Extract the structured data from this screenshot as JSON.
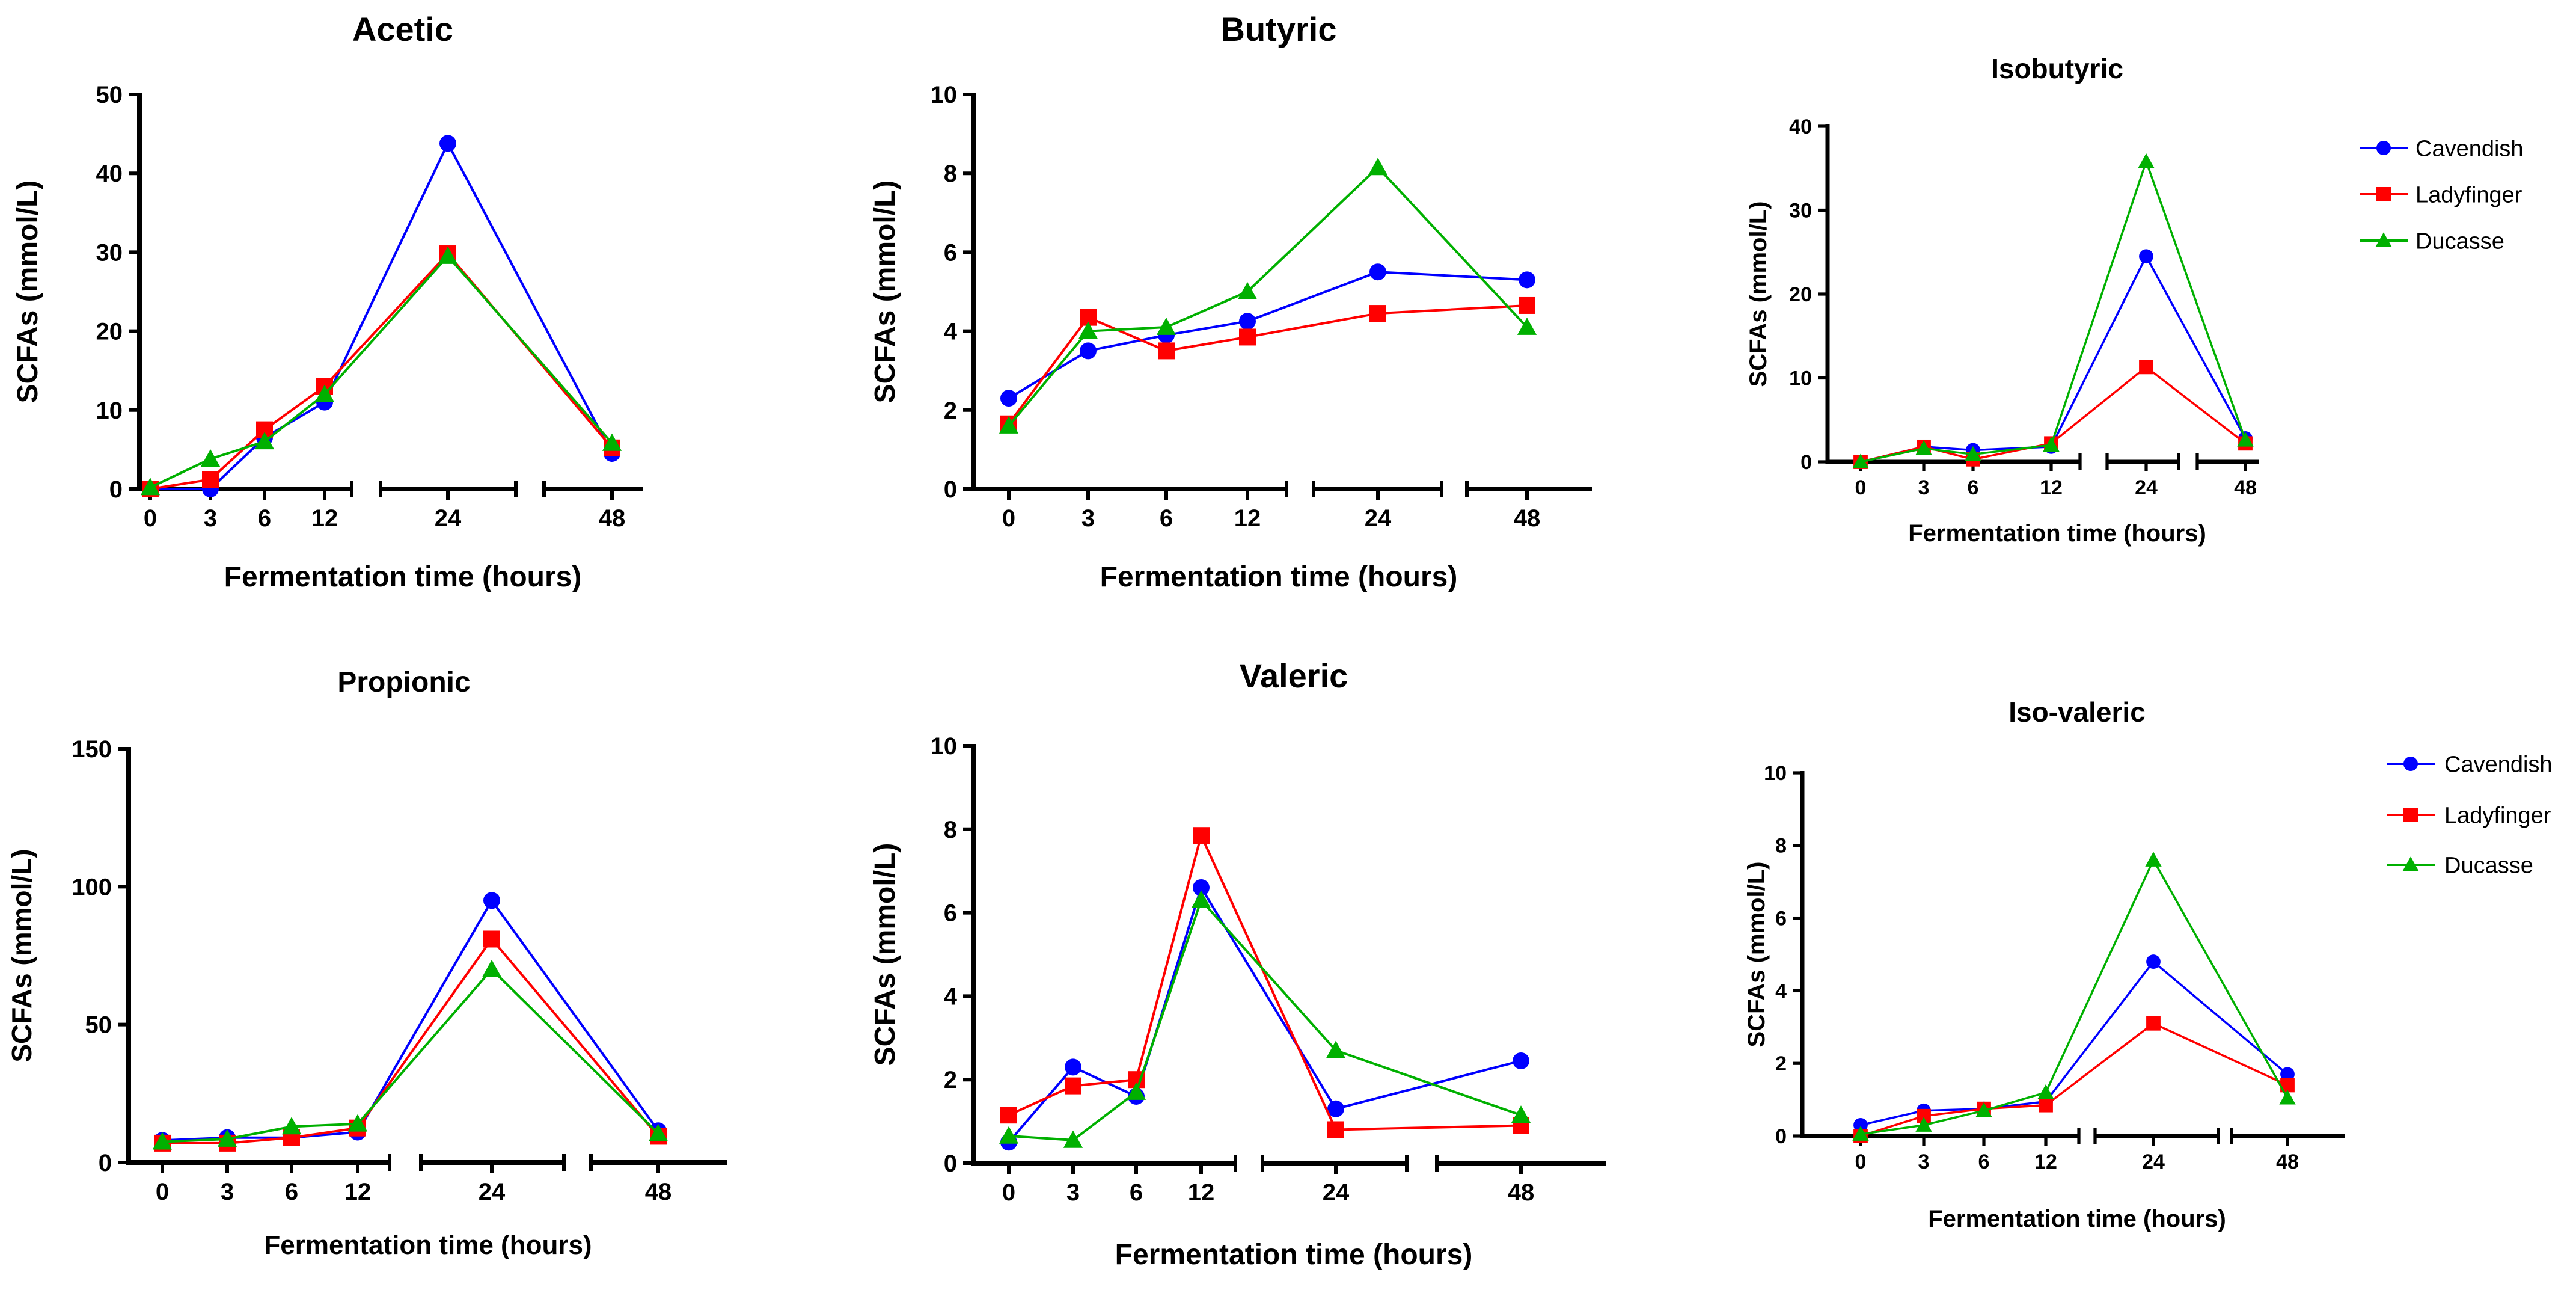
{
  "figure": {
    "series_styles": [
      {
        "name": "Cavendish",
        "color": "#0000ff",
        "marker": "circle"
      },
      {
        "name": "Ladyfinger",
        "color": "#ff0000",
        "marker": "square"
      },
      {
        "name": "Ducasse",
        "color": "#00b000",
        "marker": "triangle"
      }
    ]
  },
  "chart_data": [
    {
      "type": "line",
      "title": "Acetic",
      "xlabel": "Fermentation time (hours)",
      "ylabel": "SCFAs (mmol/L)",
      "ylim": [
        0,
        50
      ],
      "yticks": [
        0,
        10,
        20,
        30,
        40,
        50
      ],
      "categories": [
        "0",
        "3",
        "6",
        "12",
        "24",
        "48"
      ],
      "legend": false,
      "series": [
        {
          "name": "Cavendish",
          "values": [
            0,
            0,
            6.5,
            11,
            43.8,
            4.5
          ]
        },
        {
          "name": "Ladyfinger",
          "values": [
            0,
            1.2,
            7.5,
            13,
            29.8,
            5.2
          ]
        },
        {
          "name": "Ducasse",
          "values": [
            0.2,
            3.8,
            6,
            12,
            29.5,
            5.8
          ]
        }
      ]
    },
    {
      "type": "line",
      "title": "Butyric",
      "xlabel": "Fermentation time (hours)",
      "ylabel": "SCFAs (mmol/L)",
      "ylim": [
        0,
        10
      ],
      "yticks": [
        0,
        2,
        4,
        6,
        8,
        10
      ],
      "categories": [
        "0",
        "3",
        "6",
        "12",
        "24",
        "48"
      ],
      "legend": false,
      "series": [
        {
          "name": "Cavendish",
          "values": [
            2.3,
            3.5,
            3.9,
            4.25,
            5.5,
            5.3
          ]
        },
        {
          "name": "Ladyfinger",
          "values": [
            1.65,
            4.35,
            3.5,
            3.85,
            4.45,
            4.65
          ]
        },
        {
          "name": "Ducasse",
          "values": [
            1.6,
            4.0,
            4.1,
            5.0,
            8.15,
            4.1
          ]
        }
      ]
    },
    {
      "type": "line",
      "title": "Isobutyric",
      "xlabel": "Fermentation time (hours)",
      "ylabel": "SCFAs (mmol/L)",
      "ylim": [
        0,
        40
      ],
      "yticks": [
        0,
        10,
        20,
        30,
        40
      ],
      "categories": [
        "0",
        "3",
        "6",
        "12",
        "24",
        "48"
      ],
      "legend": true,
      "series": [
        {
          "name": "Cavendish",
          "values": [
            0,
            1.8,
            1.4,
            1.8,
            24.5,
            2.8
          ]
        },
        {
          "name": "Ladyfinger",
          "values": [
            0,
            1.8,
            0.3,
            2.2,
            11.3,
            2.2
          ]
        },
        {
          "name": "Ducasse",
          "values": [
            0,
            1.6,
            0.9,
            2.0,
            35.8,
            2.6
          ]
        }
      ]
    },
    {
      "type": "line",
      "title": "Propionic",
      "xlabel": "Fermentation time (hours)",
      "ylabel": "SCFAs (mmol/L)",
      "ylim": [
        0,
        150
      ],
      "yticks": [
        0,
        50,
        100,
        150
      ],
      "categories": [
        "0",
        "3",
        "6",
        "12",
        "24",
        "48"
      ],
      "legend": false,
      "series": [
        {
          "name": "Cavendish",
          "values": [
            8,
            9,
            9,
            11,
            95,
            11.5
          ]
        },
        {
          "name": "Ladyfinger",
          "values": [
            7,
            7,
            9,
            12.5,
            81,
            9.5
          ]
        },
        {
          "name": "Ducasse",
          "values": [
            7.5,
            8.5,
            13,
            14,
            70,
            10.5
          ]
        }
      ]
    },
    {
      "type": "line",
      "title": "Valeric",
      "xlabel": "Fermentation time (hours)",
      "ylabel": "SCFAs (mmol/L)",
      "ylim": [
        0,
        10
      ],
      "yticks": [
        0,
        2,
        4,
        6,
        8,
        10
      ],
      "categories": [
        "0",
        "3",
        "6",
        "12",
        "24",
        "48"
      ],
      "legend": false,
      "series": [
        {
          "name": "Cavendish",
          "values": [
            0.5,
            2.3,
            1.6,
            6.6,
            1.3,
            2.45
          ]
        },
        {
          "name": "Ladyfinger",
          "values": [
            1.15,
            1.85,
            2.0,
            7.85,
            0.8,
            0.9
          ]
        },
        {
          "name": "Ducasse",
          "values": [
            0.65,
            0.55,
            1.7,
            6.3,
            2.7,
            1.15
          ]
        }
      ]
    },
    {
      "type": "line",
      "title": "Iso-valeric",
      "xlabel": "Fermentation time (hours)",
      "ylabel": "SCFAs (mmol/L)",
      "ylim": [
        0,
        10
      ],
      "yticks": [
        0,
        2,
        4,
        6,
        8,
        10
      ],
      "categories": [
        "0",
        "3",
        "6",
        "12",
        "24",
        "48"
      ],
      "legend": true,
      "series": [
        {
          "name": "Cavendish",
          "values": [
            0.3,
            0.7,
            0.75,
            0.95,
            4.8,
            1.7
          ]
        },
        {
          "name": "Ladyfinger",
          "values": [
            0,
            0.55,
            0.75,
            0.85,
            3.1,
            1.4
          ]
        },
        {
          "name": "Ducasse",
          "values": [
            0.05,
            0.3,
            0.7,
            1.2,
            7.6,
            1.05
          ]
        }
      ]
    }
  ]
}
